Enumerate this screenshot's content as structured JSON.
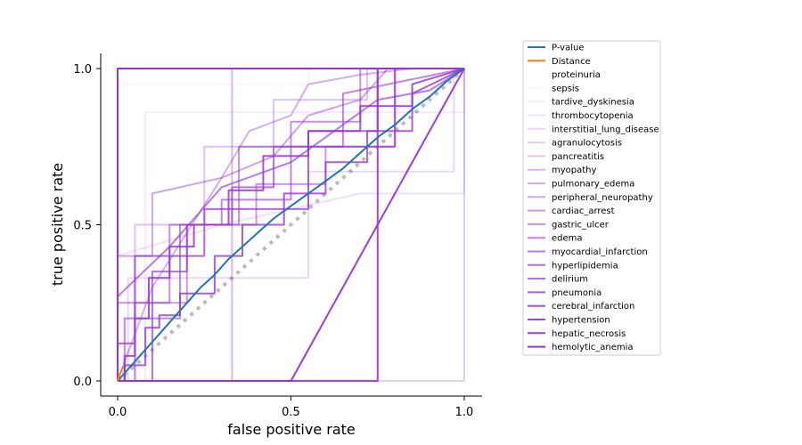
{
  "chart_data": {
    "type": "line",
    "xlabel": "false positive rate",
    "ylabel": "true positive rate",
    "xlim": [
      -0.04,
      1.05
    ],
    "ylim": [
      -0.04,
      1.05
    ],
    "xticks": [
      0.0,
      0.5,
      1.0
    ],
    "xtick_labels": [
      "0.0",
      "0.5",
      "1.0"
    ],
    "yticks": [
      0.0,
      0.5,
      1.0
    ],
    "ytick_labels": [
      "0.0",
      "0.5",
      "1.0"
    ],
    "grid": false,
    "legend_position": "outside-right",
    "colors": {
      "pvalue": "#1f77b4",
      "distance": "#ff7f0e",
      "drug": "#9933dd",
      "diagonal": "#bbbbbb"
    },
    "series": [
      {
        "name": "P-value",
        "color": "#1f77b4",
        "opacity": 1,
        "x": [
          0,
          0.04,
          0.08,
          0.12,
          0.16,
          0.2,
          0.24,
          0.28,
          0.32,
          0.36,
          0.4,
          0.45,
          0.5,
          0.55,
          0.6,
          0.65,
          0.7,
          0.75,
          0.8,
          0.85,
          0.9,
          0.95,
          1.0
        ],
        "y": [
          0,
          0.05,
          0.1,
          0.15,
          0.2,
          0.25,
          0.3,
          0.34,
          0.39,
          0.43,
          0.47,
          0.52,
          0.56,
          0.6,
          0.64,
          0.68,
          0.73,
          0.78,
          0.82,
          0.87,
          0.91,
          0.96,
          1.0
        ]
      },
      {
        "name": "Distance",
        "color": "#ff7f0e",
        "opacity": 1,
        "x": [
          0,
          0.005,
          0.01,
          0.015
        ],
        "y": [
          0,
          0.02,
          0.03,
          0.045
        ]
      },
      {
        "name": "proteinuria",
        "color": "#9933dd",
        "opacity": 0.0,
        "x": [
          0,
          0.2,
          0.2,
          1.0
        ],
        "y": [
          0,
          0,
          1.0,
          1.0
        ]
      },
      {
        "name": "sepsis",
        "color": "#9933dd",
        "opacity": 0.05,
        "x": [
          0,
          0.0,
          0.55,
          0.55,
          1.0
        ],
        "y": [
          0,
          0.95,
          0.95,
          1.0,
          1.0
        ]
      },
      {
        "name": "tardive_dyskinesia",
        "color": "#9933dd",
        "opacity": 0.1,
        "x": [
          0,
          0.08,
          0.08,
          1.0,
          1.0
        ],
        "y": [
          0,
          0,
          0.86,
          0.86,
          1.0
        ]
      },
      {
        "name": "thrombocytopenia",
        "color": "#9933dd",
        "opacity": 0.15,
        "x": [
          0,
          0.0,
          0.3,
          0.7,
          1.0,
          1.0
        ],
        "y": [
          0,
          0.4,
          0.5,
          0.6,
          0.6,
          1.0
        ]
      },
      {
        "name": "interstitial_lung_disease",
        "color": "#9933dd",
        "opacity": 0.2,
        "x": [
          0,
          0.03,
          0.03,
          0.55,
          0.55,
          0.97,
          0.97
        ],
        "y": [
          0,
          0,
          0.33,
          0.33,
          0.67,
          0.67,
          1.0
        ]
      },
      {
        "name": "agranulocytosis",
        "color": "#9933dd",
        "opacity": 0.25,
        "x": [
          0,
          0.7,
          0.7,
          1.0,
          1.0
        ],
        "y": [
          0,
          0,
          0,
          0,
          1.0
        ]
      },
      {
        "name": "pancreatitis",
        "color": "#9933dd",
        "opacity": 0.3,
        "x": [
          0,
          0.05,
          0.05,
          0.25,
          0.25,
          0.45,
          0.45,
          0.72,
          0.72,
          1.0
        ],
        "y": [
          0,
          0,
          0.5,
          0.5,
          0.75,
          0.75,
          0.9,
          0.9,
          1.0,
          1.0
        ]
      },
      {
        "name": "myopathy",
        "color": "#9933dd",
        "opacity": 0.35,
        "x": [
          0,
          0.33,
          0.33,
          0.85,
          0.87
        ],
        "y": [
          0,
          0,
          1.0,
          1.0,
          1.0
        ]
      },
      {
        "name": "pulmonary_edema",
        "color": "#9933dd",
        "opacity": 0.4,
        "x": [
          0,
          0.1,
          0.3,
          0.38,
          0.5,
          0.55,
          0.7,
          0.85
        ],
        "y": [
          0,
          0.3,
          0.65,
          0.8,
          0.85,
          0.95,
          0.98,
          1.0
        ]
      },
      {
        "name": "peripheral_neuropathy",
        "color": "#9933dd",
        "opacity": 0.45,
        "x": [
          0,
          0.0,
          0.1,
          0.1,
          0.3,
          0.45,
          0.55,
          0.7,
          0.78,
          0.8
        ],
        "y": [
          0,
          0.4,
          0.4,
          0.6,
          0.65,
          0.72,
          0.85,
          0.9,
          1.0,
          1.0
        ]
      },
      {
        "name": "cardiac_arrest",
        "color": "#9933dd",
        "opacity": 0.5,
        "x": [
          0,
          0.05,
          0.05,
          0.2,
          0.2,
          0.4,
          0.4,
          0.6,
          0.6,
          0.8,
          0.8,
          1.0
        ],
        "y": [
          0,
          0,
          0.25,
          0.25,
          0.5,
          0.5,
          0.63,
          0.63,
          0.75,
          0.75,
          1.0,
          1.0
        ]
      },
      {
        "name": "gastric_ulcer",
        "color": "#9933dd",
        "opacity": 0.55,
        "x": [
          0,
          0.0,
          0.15,
          0.15,
          0.35,
          0.35,
          0.5,
          0.5,
          0.7,
          0.7,
          1.0
        ],
        "y": [
          0,
          0.25,
          0.25,
          0.5,
          0.5,
          0.75,
          0.75,
          0.83,
          0.83,
          1.0,
          1.0
        ]
      },
      {
        "name": "edema",
        "color": "#9933dd",
        "opacity": 0.6,
        "x": [
          0,
          0.02,
          0.02,
          0.18,
          0.18,
          0.3,
          0.3,
          0.5,
          0.5,
          0.65,
          0.65,
          1.0
        ],
        "y": [
          0,
          0,
          0.2,
          0.2,
          0.5,
          0.5,
          0.58,
          0.58,
          0.75,
          0.75,
          0.92,
          1.0
        ]
      },
      {
        "name": "myocardial_infarction",
        "color": "#9933dd",
        "opacity": 0.65,
        "x": [
          0,
          0.0,
          0.15,
          0.3,
          0.5,
          0.75,
          0.9,
          1.0
        ],
        "y": [
          0,
          0.27,
          0.43,
          0.62,
          0.7,
          0.9,
          0.93,
          1.0
        ]
      },
      {
        "name": "hyperlipidemia",
        "color": "#9933dd",
        "opacity": 0.7,
        "x": [
          0,
          0.1,
          0.1,
          0.2,
          0.2,
          0.33,
          0.33,
          0.45,
          0.45,
          0.55,
          0.55,
          0.75,
          0.75,
          1.0
        ],
        "y": [
          0,
          0,
          0.35,
          0.35,
          0.5,
          0.5,
          0.62,
          0.62,
          0.75,
          0.75,
          0.8,
          0.8,
          1.0,
          1.0
        ]
      },
      {
        "name": "delirium",
        "color": "#9933dd",
        "opacity": 0.75,
        "x": [
          0,
          0.0,
          0.05,
          0.05,
          0.25,
          0.25,
          0.55,
          0.55,
          0.8,
          0.8,
          1.0
        ],
        "y": [
          0,
          0.12,
          0.12,
          0.4,
          0.4,
          0.55,
          0.55,
          0.75,
          0.75,
          1.0,
          1.0
        ]
      },
      {
        "name": "pneumonia",
        "color": "#9933dd",
        "opacity": 0.8,
        "x": [
          0,
          0.02,
          0.02,
          0.08,
          0.08,
          0.12,
          0.12,
          0.18,
          0.18,
          0.28,
          0.28,
          0.36,
          0.36,
          0.48,
          0.48,
          0.6,
          0.6,
          0.72,
          0.72,
          0.85,
          0.85,
          1.0
        ],
        "y": [
          0,
          0,
          0.05,
          0.05,
          0.17,
          0.17,
          0.21,
          0.21,
          0.28,
          0.28,
          0.4,
          0.4,
          0.5,
          0.5,
          0.6,
          0.6,
          0.7,
          0.7,
          0.8,
          0.8,
          0.92,
          1.0
        ]
      },
      {
        "name": "cerebral_infarction",
        "color": "#9933dd",
        "opacity": 0.85,
        "x": [
          0,
          0.02,
          0.02,
          0.05,
          0.05,
          0.09,
          0.09,
          0.15,
          0.15,
          0.22,
          0.22,
          0.32,
          0.32,
          0.42,
          0.42,
          0.55,
          0.55,
          0.7,
          0.7,
          0.85,
          0.85,
          1.0
        ],
        "y": [
          0,
          0,
          0.08,
          0.08,
          0.2,
          0.2,
          0.33,
          0.33,
          0.43,
          0.43,
          0.5,
          0.5,
          0.61,
          0.61,
          0.72,
          0.72,
          0.8,
          0.8,
          0.88,
          0.88,
          0.95,
          1.0
        ]
      },
      {
        "name": "hypertension",
        "color": "#9933dd",
        "opacity": 0.9,
        "x": [
          0,
          0.75,
          0.75,
          1.0
        ],
        "y": [
          0,
          0,
          1.0,
          1.0
        ]
      },
      {
        "name": "hepatic_necrosis",
        "color": "#9933dd",
        "opacity": 0.95,
        "x": [
          0,
          0.5,
          1.0,
          1.0
        ],
        "y": [
          0,
          0,
          1.0,
          1.0
        ]
      },
      {
        "name": "hemolytic_anemia",
        "color": "#9933dd",
        "opacity": 1,
        "x": [
          0,
          0.0,
          1.0,
          1.0
        ],
        "y": [
          0,
          1.0,
          1.0,
          1.0
        ]
      }
    ],
    "diagonal": {
      "x": [
        0,
        1
      ],
      "y": [
        0,
        1
      ],
      "style": "dotted"
    }
  }
}
